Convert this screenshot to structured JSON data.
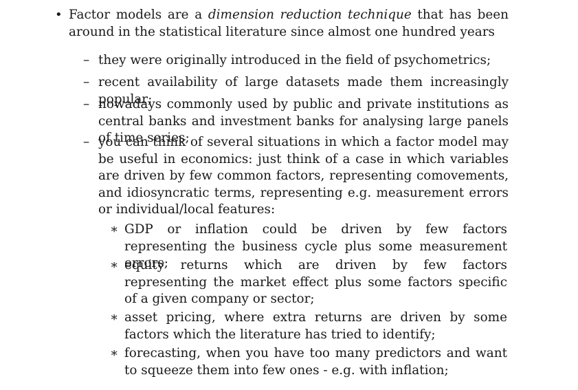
{
  "main_bullet": {
    "prefix": "Factor models are a ",
    "emphasis": "dimension reduction technique",
    "suffix": " that has been around in the statistical literature since almost one hundred years"
  },
  "sub_items": [
    "they were originally introduced in the field of psychometrics;",
    "recent availability of large datasets made them increasingly popular;",
    "nowadays commonly used by public and private institutions as central banks and investment banks for analysing large panels of time series;",
    "you can think of several situations in which a factor model may be useful in economics: just think of a case in which variables are driven by few common factors, representing comovements, and idiosyncratic terms, representing e.g.  measurement errors or individual/local fea­tures:"
  ],
  "examples": [
    "GDP or inflation could be driven by few factors representing the business cycle plus some measurement errors;",
    "equity returns which are driven by few factors representing the market effect plus some factors specific of a given company or sector;",
    "asset pricing, where extra returns are driven by some factors which the literature has tried to identify;",
    "forecasting, when you have too many predictors and want to squeeze them into few ones - e.g.  with inflation;"
  ],
  "markers": {
    "bullet": "•",
    "dash": "–",
    "star": "∗"
  }
}
